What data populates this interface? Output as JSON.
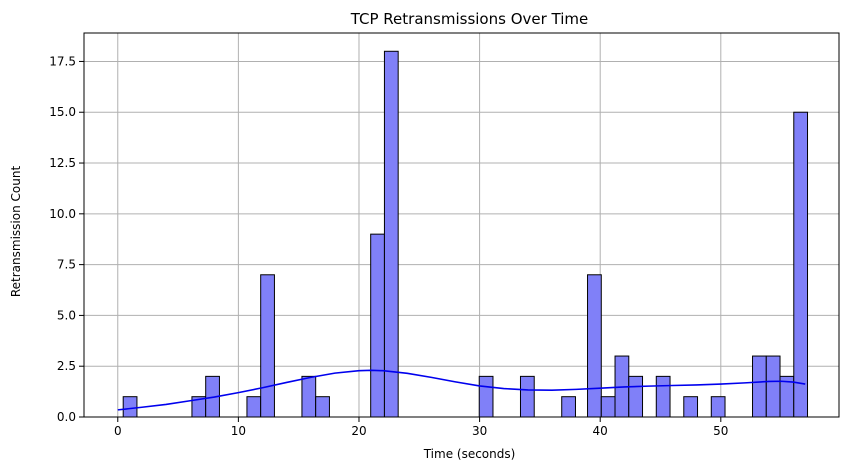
{
  "chart_data": {
    "type": "bar",
    "title": "TCP Retransmissions Over Time",
    "xlabel": "Time (seconds)",
    "ylabel": "Retransmission Count",
    "xlim": [
      -2.8,
      59.8
    ],
    "ylim": [
      0,
      18.9
    ],
    "xticks": [
      0,
      10,
      20,
      30,
      40,
      50
    ],
    "yticks": [
      0.0,
      2.5,
      5.0,
      7.5,
      10.0,
      12.5,
      15.0,
      17.5
    ],
    "ytick_labels": [
      "0.0",
      "2.5",
      "5.0",
      "7.5",
      "10.0",
      "12.5",
      "15.0",
      "17.5"
    ],
    "grid": true,
    "bin_width": 1.14,
    "bins": [
      {
        "x": 0.45,
        "count": 1
      },
      {
        "x": 6.15,
        "count": 1
      },
      {
        "x": 7.29,
        "count": 2
      },
      {
        "x": 10.71,
        "count": 1
      },
      {
        "x": 11.85,
        "count": 7
      },
      {
        "x": 15.27,
        "count": 2
      },
      {
        "x": 16.41,
        "count": 1
      },
      {
        "x": 20.97,
        "count": 9
      },
      {
        "x": 22.11,
        "count": 18
      },
      {
        "x": 29.97,
        "count": 2
      },
      {
        "x": 33.39,
        "count": 2
      },
      {
        "x": 36.81,
        "count": 1
      },
      {
        "x": 38.95,
        "count": 7
      },
      {
        "x": 40.09,
        "count": 1
      },
      {
        "x": 41.23,
        "count": 3
      },
      {
        "x": 42.37,
        "count": 2
      },
      {
        "x": 44.65,
        "count": 2
      },
      {
        "x": 46.93,
        "count": 1
      },
      {
        "x": 49.21,
        "count": 1
      },
      {
        "x": 52.63,
        "count": 3
      },
      {
        "x": 53.77,
        "count": 3
      },
      {
        "x": 54.91,
        "count": 2
      },
      {
        "x": 56.05,
        "count": 15
      }
    ],
    "kde_line": {
      "x": [
        0,
        2,
        4,
        6,
        8,
        10,
        12,
        14,
        16,
        18,
        20,
        21,
        22,
        24,
        26,
        28,
        30,
        32,
        34,
        36,
        38,
        40,
        42,
        44,
        46,
        48,
        50,
        52,
        54,
        55,
        56,
        57
      ],
      "y": [
        0.35,
        0.48,
        0.62,
        0.8,
        0.98,
        1.2,
        1.44,
        1.7,
        1.95,
        2.16,
        2.28,
        2.3,
        2.28,
        2.15,
        1.95,
        1.73,
        1.53,
        1.4,
        1.33,
        1.32,
        1.36,
        1.42,
        1.48,
        1.52,
        1.55,
        1.58,
        1.62,
        1.68,
        1.75,
        1.76,
        1.72,
        1.62
      ]
    },
    "colors": {
      "bar_fill": "#8080f8",
      "bar_edge": "#000000",
      "kde_line": "#0000ee",
      "grid": "#b0b0b0"
    }
  }
}
